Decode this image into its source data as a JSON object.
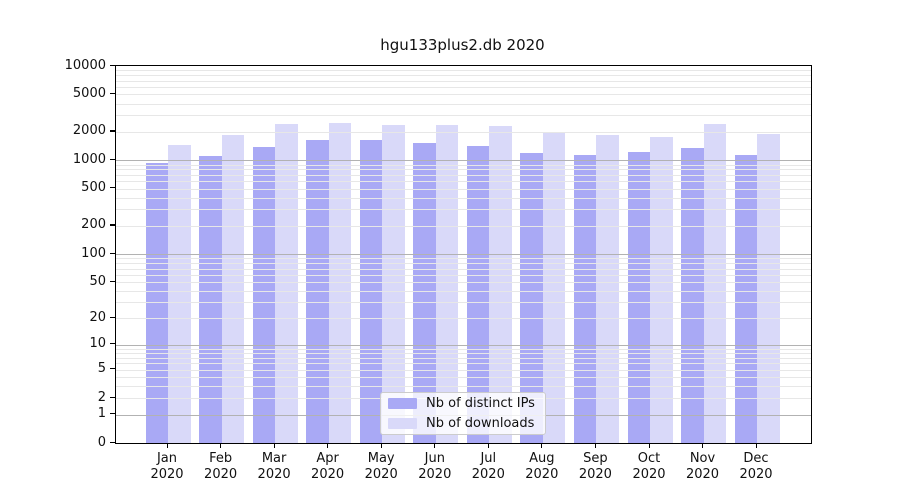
{
  "chart_data": {
    "type": "bar",
    "title": "hgu133plus2.db 2020",
    "categories": [
      "Jan",
      "Feb",
      "Mar",
      "Apr",
      "May",
      "Jun",
      "Jul",
      "Aug",
      "Sep",
      "Oct",
      "Nov",
      "Dec"
    ],
    "category_year": "2020",
    "series": [
      {
        "name": "Nb of distinct IPs",
        "color": "#a9a9f5",
        "values": [
          930,
          1120,
          1370,
          1630,
          1640,
          1540,
          1400,
          1190,
          1130,
          1210,
          1340,
          1140
        ]
      },
      {
        "name": "Nb of downloads",
        "color": "#d9d9f9",
        "values": [
          1450,
          1850,
          2450,
          2500,
          2360,
          2370,
          2290,
          1970,
          1850,
          1770,
          2410,
          1880
        ]
      }
    ],
    "xlabel": "",
    "ylabel": "",
    "y_scale": "log1p",
    "ylim": [
      0,
      10000
    ],
    "y_ticks": [
      0,
      1,
      2,
      5,
      10,
      20,
      50,
      100,
      200,
      500,
      1000,
      2000,
      5000,
      10000
    ],
    "grid": "log major and minor gridlines, drawn above bars",
    "grid_major_color": "#b2b2b2",
    "grid_minor_color": "#e7e7e7",
    "legend_position": "bottom-center"
  }
}
